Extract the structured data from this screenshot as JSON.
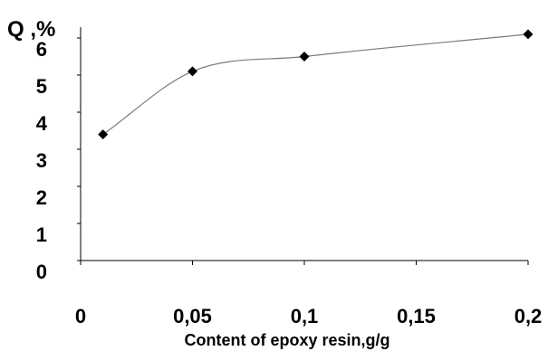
{
  "chart_data": {
    "type": "line",
    "xlabel": "Content of epoxy resin,g/g",
    "ylabel": "Q ,%",
    "xlim": [
      0,
      0.2
    ],
    "ylim": [
      0,
      6
    ],
    "x_ticks": [
      0,
      0.05,
      0.1,
      0.15,
      0.2
    ],
    "x_tick_labels": [
      "0",
      "0,05",
      "0,1",
      "0,15",
      "0,2"
    ],
    "y_ticks": [
      0,
      1,
      2,
      3,
      4,
      5,
      6
    ],
    "y_tick_labels": [
      "0",
      "1",
      "2",
      "3",
      "4",
      "5",
      "6"
    ],
    "grid": false,
    "smooth": true,
    "marker": "diamond",
    "series": [
      {
        "x": [
          0.01,
          0.05,
          0.1,
          0.2
        ],
        "y": [
          3.4,
          5.1,
          5.5,
          6.1
        ]
      }
    ]
  }
}
